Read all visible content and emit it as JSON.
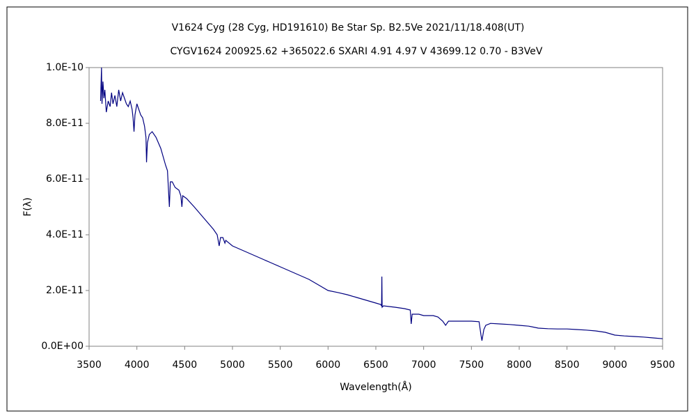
{
  "chart_data": {
    "type": "line",
    "title": "V1624 Cyg (28 Cyg, HD191610)    Be Star    Sp. B2.5Ve    2021/11/18.408(UT)",
    "subtitle": "CYGV1624 200925.62 +365022.6 SXARI 4.91  4.97 V 43699.12  0.70 - B3VeV",
    "x_label": "Wavelength(Å)",
    "y_label": "F(λ)",
    "x": [
      3620,
      3630,
      3635,
      3645,
      3655,
      3665,
      3680,
      3700,
      3720,
      3735,
      3750,
      3770,
      3790,
      3810,
      3830,
      3850,
      3870,
      3890,
      3910,
      3930,
      3950,
      3960,
      3970,
      3980,
      4000,
      4020,
      4040,
      4060,
      4080,
      4095,
      4101,
      4110,
      4130,
      4160,
      4200,
      4250,
      4300,
      4320,
      4340,
      4350,
      4370,
      4400,
      4440,
      4460,
      4471,
      4480,
      4520,
      4600,
      4700,
      4800,
      4840,
      4861,
      4875,
      4900,
      4921,
      4930,
      5000,
      5100,
      5200,
      5300,
      5400,
      5500,
      5600,
      5700,
      5800,
      5900,
      6000,
      6100,
      6200,
      6300,
      6400,
      6500,
      6550,
      6560,
      6563,
      6566,
      6580,
      6700,
      6800,
      6860,
      6870,
      6880,
      6950,
      7000,
      7100,
      7150,
      7200,
      7230,
      7260,
      7300,
      7400,
      7500,
      7580,
      7600,
      7610,
      7630,
      7650,
      7700,
      7800,
      7900,
      8000,
      8100,
      8200,
      8300,
      8400,
      8500,
      8600,
      8700,
      8800,
      8900,
      9000,
      9100,
      9200,
      9300,
      9400,
      9500
    ],
    "series": [
      {
        "name": "F(λ)",
        "color": "#000080",
        "values": [
          8.8e-11,
          1e-10,
          8.7e-11,
          9.5e-11,
          8.9e-11,
          9.2e-11,
          8.4e-11,
          8.8e-11,
          8.6e-11,
          9.1e-11,
          8.7e-11,
          9e-11,
          8.6e-11,
          9.2e-11,
          8.8e-11,
          9.1e-11,
          8.9e-11,
          8.7e-11,
          8.6e-11,
          8.8e-11,
          8.5e-11,
          8.2e-11,
          7.7e-11,
          8.3e-11,
          8.7e-11,
          8.5e-11,
          8.3e-11,
          8.2e-11,
          7.9e-11,
          7.5e-11,
          6.6e-11,
          7.3e-11,
          7.6e-11,
          7.7e-11,
          7.5e-11,
          7.1e-11,
          6.5e-11,
          6.3e-11,
          5e-11,
          5.9e-11,
          5.9e-11,
          5.7e-11,
          5.6e-11,
          5.4e-11,
          5e-11,
          5.4e-11,
          5.3e-11,
          5e-11,
          4.6e-11,
          4.2e-11,
          4e-11,
          3.6e-11,
          3.9e-11,
          3.9e-11,
          3.7e-11,
          3.8e-11,
          3.6e-11,
          3.45e-11,
          3.3e-11,
          3.15e-11,
          3e-11,
          2.85e-11,
          2.7e-11,
          2.55e-11,
          2.4e-11,
          2.2e-11,
          2e-11,
          1.93e-11,
          1.85e-11,
          1.75e-11,
          1.65e-11,
          1.55e-11,
          1.5e-11,
          1.45e-11,
          2.5e-11,
          1.4e-11,
          1.45e-11,
          1.4e-11,
          1.35e-11,
          1.3e-11,
          8e-12,
          1.15e-11,
          1.15e-11,
          1.1e-11,
          1.1e-11,
          1.05e-11,
          9e-12,
          7.5e-12,
          9e-12,
          9e-12,
          9e-12,
          9e-12,
          8.8e-12,
          4e-12,
          2e-12,
          6e-12,
          7.5e-12,
          8.2e-12,
          8e-12,
          7.8e-12,
          7.5e-12,
          7.2e-12,
          6.5e-12,
          6.3e-12,
          6.2e-12,
          6.2e-12,
          6e-12,
          5.8e-12,
          5.5e-12,
          5e-12,
          4e-12,
          3.7e-12,
          3.5e-12,
          3.3e-12,
          3e-12,
          2.7e-12
        ]
      }
    ],
    "xlim": [
      3500,
      9500
    ],
    "xticks": [
      3500,
      4000,
      4500,
      5000,
      5500,
      6000,
      6500,
      7000,
      7500,
      8000,
      8500,
      9000,
      9500
    ],
    "ylim": [
      0,
      1e-10
    ],
    "yticks": [
      {
        "value": 0,
        "label": "0.0E+00"
      },
      {
        "value": 2e-11,
        "label": "2.0E-11"
      },
      {
        "value": 4e-11,
        "label": "4.0E-11"
      },
      {
        "value": 6e-11,
        "label": "6.0E-11"
      },
      {
        "value": 8e-11,
        "label": "8.0E-11"
      },
      {
        "value": 1e-10,
        "label": "1.0E-10"
      }
    ],
    "grid": false
  }
}
